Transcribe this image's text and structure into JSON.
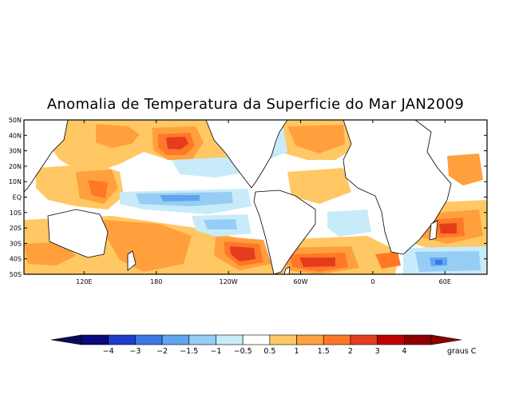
{
  "title": "Anomalia de Temperatura da Superficie do Mar JAN2009",
  "map": {
    "lat_labels": [
      "50N",
      "40N",
      "30N",
      "20N",
      "10N",
      "EQ",
      "10S",
      "20S",
      "30S",
      "40S",
      "50S"
    ],
    "lon_labels": [
      "120E",
      "180",
      "120W",
      "60W",
      "0",
      "60E"
    ],
    "lon_range": [
      70,
      95
    ],
    "lat_range": [
      -50,
      50
    ]
  },
  "colorbar": {
    "unit_label": "graus C",
    "tick_labels": [
      "-4",
      "-3",
      "-2",
      "-1.5",
      "-1",
      "-0.5",
      "0.5",
      "1",
      "1.5",
      "2",
      "3",
      "4"
    ],
    "colors": [
      "#0a0a7e",
      "#1e3dc8",
      "#3c78e6",
      "#5fa5f0",
      "#96cdf5",
      "#c8ebfa",
      "#ffffff",
      "#ffc864",
      "#ffa03c",
      "#ff7828",
      "#e63c1e",
      "#c00000",
      "#8c0000"
    ],
    "ends": [
      "#0a0a5a",
      "#8c0000"
    ]
  },
  "anomaly_regions": [
    {
      "name": "north-pacific-warm-core",
      "lon": 210,
      "lat": 37,
      "value": 3,
      "color": "#e63c1e"
    },
    {
      "name": "north-pacific-warm",
      "lon": 205,
      "lat": 35,
      "value": 1.5,
      "color": "#ff7828"
    },
    {
      "name": "equatorial-pacific-cold",
      "lon": 220,
      "lat": 0,
      "value": -1,
      "color": "#96cdf5"
    },
    {
      "name": "south-pacific-warm-core",
      "lon": 255,
      "lat": -38,
      "value": 3,
      "color": "#e63c1e"
    },
    {
      "name": "south-atlantic-warm-core",
      "lon": 320,
      "lat": -43,
      "value": 3,
      "color": "#e63c1e"
    },
    {
      "name": "indian-ocean-warm",
      "lon": 40,
      "lat": -22,
      "value": 2,
      "color": "#ff7828"
    },
    {
      "name": "southern-indian-cold",
      "lon": 65,
      "lat": -42,
      "value": -2,
      "color": "#5fa5f0"
    },
    {
      "name": "western-pacific-warm",
      "lon": 140,
      "lat": 5,
      "value": 1,
      "color": "#ffa03c"
    }
  ]
}
